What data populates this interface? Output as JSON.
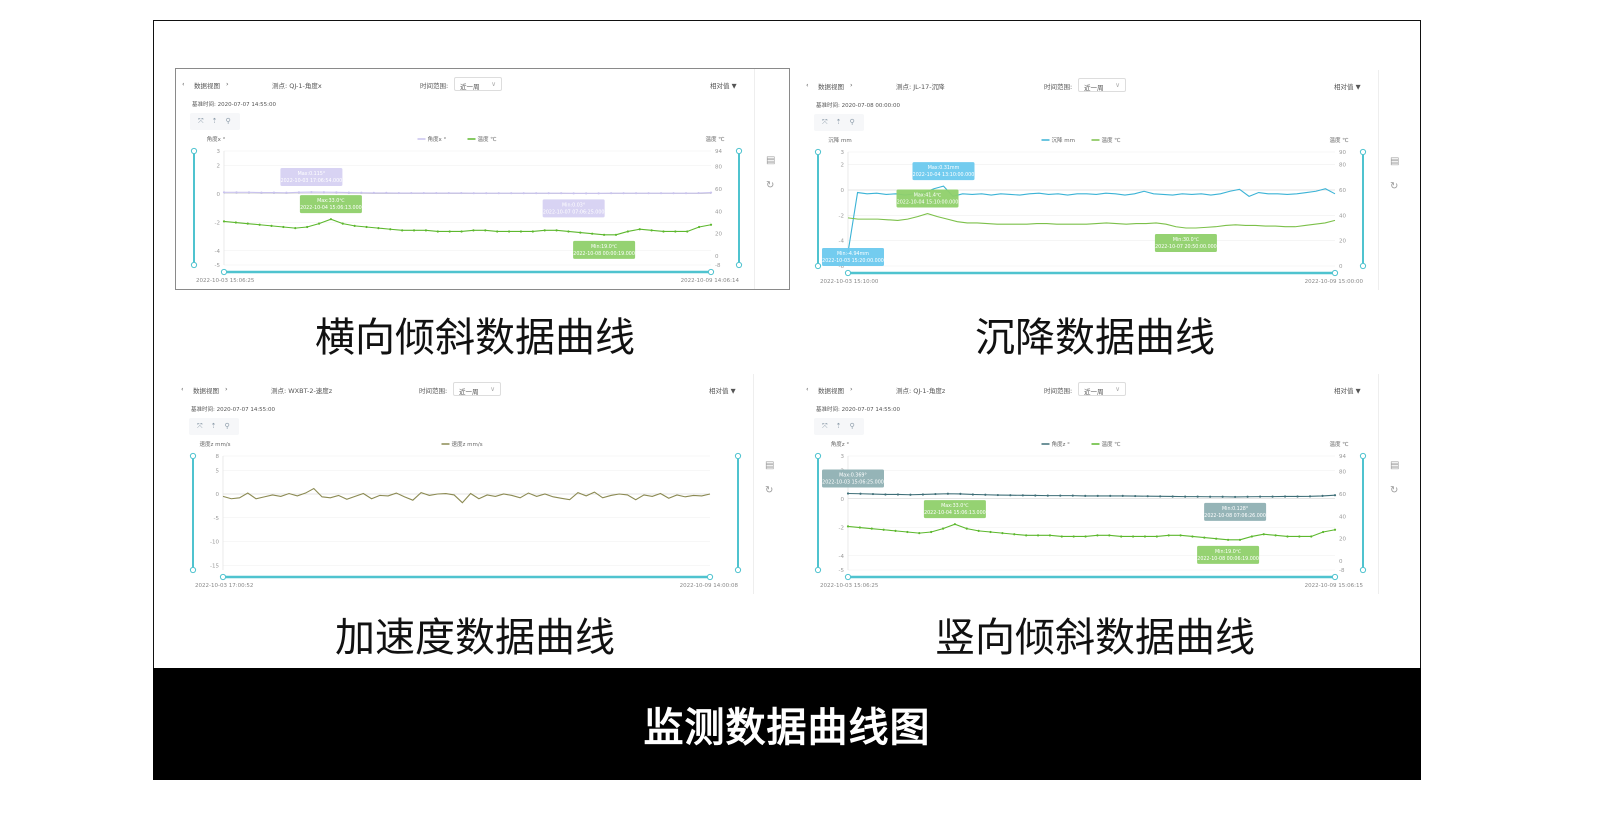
{
  "title": "监测数据曲线图",
  "colors": {
    "slider": "#4fc3cf",
    "grid": "#eeeeee",
    "axis": "#999999"
  },
  "panels": [
    {
      "caption": "横向倾斜数据曲线",
      "nav_label": "数据视图",
      "point": "测点: QJ-1-角度x",
      "range_label": "时间范围:",
      "range_value": "近一周",
      "mode": "相对值 ▼",
      "base_time": "基准时间: 2020-07-07 14:55:00",
      "left_axis_name": "角度x °",
      "right_axis_name": "温度 ℃",
      "left_ticks": [
        3,
        2,
        0,
        -2,
        -4,
        -5
      ],
      "left_range": [
        -5,
        3
      ],
      "right_ticks": [
        94,
        80,
        60,
        40,
        20,
        0,
        -8
      ],
      "right_range": [
        -8,
        94
      ],
      "x_start": "2022-10-03 15:06:25",
      "x_end": "2022-10-09 14:06:14",
      "series": [
        {
          "name": "角度x °",
          "axis": "left",
          "color": "#c9c3ee",
          "dots": true,
          "values": [
            0.1,
            0.1,
            0.1,
            0.08,
            0.08,
            0.07,
            0.1,
            0.12,
            0.11,
            0.1,
            0.08,
            0.07,
            0.06,
            0.06,
            0.05,
            0.05,
            0.05,
            0.05,
            0.05,
            0.05,
            0.04,
            0.04,
            0.04,
            0.04,
            0.04,
            0.04,
            0.04,
            0.04,
            0.03,
            0.03,
            0.03,
            0.04,
            0.04,
            0.04,
            0.04,
            0.04,
            0.04,
            0.04,
            0.05,
            0.08
          ],
          "tips": [
            {
              "kind": "max",
              "lines": [
                "Max:0.115°",
                "2022-10-03 17:06:54.000"
              ],
              "color": "#d6d1f2"
            },
            {
              "kind": "min",
              "lines": [
                "Min:0.03°",
                "2022-10-07 07:06:25.000"
              ],
              "color": "#d6d1f2"
            }
          ]
        },
        {
          "name": "温度 ℃",
          "axis": "right",
          "color": "#5db82e",
          "dots": true,
          "values": [
            31,
            30,
            29,
            28,
            27,
            26,
            25,
            26,
            29,
            33,
            29,
            27,
            26,
            25,
            24,
            23,
            23,
            23,
            22,
            22,
            22,
            23,
            23,
            22,
            22,
            22,
            22,
            23,
            23,
            22,
            21,
            20,
            19,
            19,
            22,
            24,
            23,
            22,
            22,
            22,
            26,
            28
          ],
          "tips": [
            {
              "kind": "max",
              "lines": [
                "Max:33.0℃",
                "2022-10-04 15:06:13.000"
              ],
              "color": "#8fd06a"
            },
            {
              "kind": "min",
              "lines": [
                "Min:19.0℃",
                "2022-10-08 00:00:19.000"
              ],
              "color": "#8fd06a"
            }
          ]
        }
      ]
    },
    {
      "caption": "沉降数据曲线",
      "nav_label": "数据视图",
      "point": "测点: JL-17-沉降",
      "range_label": "时间范围:",
      "range_value": "近一周",
      "mode": "相对值 ▼",
      "base_time": "基准时间: 2020-07-08 00:00:00",
      "left_axis_name": "沉降 mm",
      "right_axis_name": "温度 ℃",
      "left_ticks": [
        3,
        2,
        0,
        -2,
        -4,
        -6
      ],
      "left_range": [
        -6,
        3
      ],
      "right_ticks": [
        90,
        80,
        60,
        40,
        20,
        0
      ],
      "right_range": [
        0,
        90
      ],
      "x_start": "2022-10-03 15:10:00",
      "x_end": "2022-10-09 15:00:00",
      "series": [
        {
          "name": "沉降 mm",
          "axis": "left",
          "color": "#3bb3d6",
          "dots": false,
          "values": [
            -4.94,
            -0.2,
            -0.3,
            -0.25,
            -0.35,
            -0.3,
            -0.4,
            -0.3,
            -0.2,
            0.1,
            0.31,
            -0.5,
            -0.3,
            -0.35,
            -0.3,
            -0.4,
            -0.3,
            -0.35,
            -0.4,
            -0.3,
            -0.25,
            -0.35,
            -0.3,
            -0.4,
            -0.3,
            -0.3,
            -0.35,
            -0.25,
            -0.3,
            -0.4,
            -0.3,
            -0.1,
            -0.3,
            -0.35,
            -0.4,
            -0.3,
            -0.35,
            -0.3,
            -0.4,
            -0.3,
            -0.1,
            0.05,
            -0.5,
            -0.2,
            -0.3,
            -0.3,
            -0.35,
            -0.3,
            -0.2,
            -0.1,
            0.1,
            -0.3
          ],
          "tips": [
            {
              "kind": "max",
              "lines": [
                "Max:0.31mm",
                "2022-10-04 13:10:00.000"
              ],
              "color": "#6cc9ee"
            },
            {
              "kind": "min",
              "lines": [
                "Min:-4.94mm",
                "2022-10-03 15:20:00.000"
              ],
              "color": "#6cc9ee"
            }
          ]
        },
        {
          "name": "温度 ℃",
          "axis": "right",
          "color": "#7cc04a",
          "dots": false,
          "values": [
            38,
            37,
            37,
            37,
            36.5,
            36,
            37,
            39,
            41.4,
            39,
            37,
            35,
            34,
            34,
            33.5,
            33,
            33,
            33,
            33,
            33.5,
            33.5,
            33,
            33,
            33,
            33,
            33.5,
            34,
            33.5,
            33,
            33.5,
            33.5,
            34,
            33,
            31,
            30,
            30,
            30.5,
            31,
            32,
            32.5,
            32,
            32,
            31.5,
            31.5,
            31,
            31,
            32,
            33,
            34,
            36
          ],
          "tips": [
            {
              "kind": "max",
              "lines": [
                "Max:41.4℃",
                "2022-10-04 15:10:00.000"
              ],
              "color": "#8fd06a"
            },
            {
              "kind": "min",
              "lines": [
                "Min:30.0℃",
                "2022-10-07 20:50:00.000"
              ],
              "color": "#8fd06a"
            }
          ]
        }
      ]
    },
    {
      "caption": "加速度数据曲线",
      "nav_label": "数据视图",
      "point": "测点: WXBT-2-速度z",
      "range_label": "时间范围:",
      "range_value": "近一周",
      "mode": "相对值 ▼",
      "base_time": "基准时间: 2020-07-07 14:55:00",
      "left_axis_name": "速度z mm/s",
      "right_axis_name": "",
      "left_ticks": [
        8,
        5,
        0,
        -5,
        -10,
        -15
      ],
      "left_range": [
        -16,
        8
      ],
      "right_ticks": [],
      "right_range": null,
      "x_start": "2022-10-03 17:00:52",
      "x_end": "2022-10-09 14:00:08",
      "series": [
        {
          "name": "速度z mm/s",
          "axis": "left",
          "color": "#8b8a52",
          "dots": false,
          "values": [
            -0.5,
            -1,
            -0.8,
            0.2,
            -1,
            -0.6,
            -0.2,
            -0.5,
            0.1,
            -0.4,
            0.2,
            1.15,
            -0.6,
            -0.8,
            -0.3,
            -1.1,
            -0.5,
            0.1,
            -1,
            -0.3,
            -0.4,
            0.2,
            -0.6,
            -1.3,
            0.3,
            -0.3,
            0,
            0.1,
            -0.2,
            -1.83,
            0.1,
            -1,
            -0.2,
            -0.5,
            0,
            -0.3,
            -0.8,
            0.2,
            -0.5,
            0,
            -0.6,
            -0.9,
            -1.2,
            0.3,
            -0.4,
            0.4,
            -0.8,
            -0.3,
            0,
            -0.2,
            -1.2,
            -0.2,
            -0.5,
            0.1,
            -0.9,
            -0.2,
            -0.6,
            -0.3,
            -0.4,
            0
          ]
        },
        {
          "name": "",
          "axis": "none",
          "values": [],
          "tips": []
        }
      ],
      "tips_acc": []
    },
    {
      "caption": "竖向倾斜数据曲线",
      "nav_label": "数据视图",
      "point": "测点: QJ-1-角度z",
      "range_label": "时间范围:",
      "range_value": "近一周",
      "mode": "相对值 ▼",
      "base_time": "基准时间: 2020-07-07 14:55:00",
      "left_axis_name": "角度z °",
      "right_axis_name": "温度 ℃",
      "left_ticks": [
        3,
        2,
        0,
        -2,
        -4,
        -5
      ],
      "left_range": [
        -5,
        3
      ],
      "right_ticks": [
        94,
        80,
        60,
        40,
        20,
        0,
        -8
      ],
      "right_range": [
        -8,
        94
      ],
      "x_start": "2022-10-03 15:06:25",
      "x_end": "2022-10-09 15:06:15",
      "series": [
        {
          "name": "角度z °",
          "axis": "left",
          "color": "#3f6f78",
          "dots": true,
          "values": [
            0.369,
            0.35,
            0.33,
            0.3,
            0.3,
            0.28,
            0.3,
            0.33,
            0.35,
            0.34,
            0.3,
            0.28,
            0.26,
            0.25,
            0.24,
            0.23,
            0.22,
            0.22,
            0.22,
            0.2,
            0.2,
            0.2,
            0.2,
            0.19,
            0.18,
            0.17,
            0.16,
            0.15,
            0.15,
            0.14,
            0.14,
            0.128,
            0.14,
            0.15,
            0.15,
            0.16,
            0.16,
            0.17,
            0.2,
            0.25
          ],
          "tips": [
            {
              "kind": "max",
              "lines": [
                "Max:0.369°",
                "2022-10-03 15:06:25.000"
              ],
              "color": "#8fb0b3"
            },
            {
              "kind": "min",
              "lines": [
                "Min:0.128°",
                "2022-10-08 07:06:26.000"
              ],
              "color": "#8fb0b3"
            }
          ]
        },
        {
          "name": "温度 ℃",
          "axis": "right",
          "color": "#5db82e",
          "dots": true,
          "values": [
            31,
            30,
            29,
            28,
            27,
            26,
            25,
            26,
            29,
            33,
            29,
            27,
            26,
            25,
            24,
            23,
            23,
            23,
            22,
            22,
            22,
            23,
            23,
            22,
            22,
            22,
            22,
            23,
            23,
            22,
            21,
            20,
            19,
            19,
            22,
            24,
            23,
            22,
            22,
            22,
            26,
            28
          ],
          "tips": [
            {
              "kind": "max",
              "lines": [
                "Max:33.0℃",
                "2022-10-04 15:06:13.000"
              ],
              "color": "#8fd06a"
            },
            {
              "kind": "min",
              "lines": [
                "Min:19.0℃",
                "2022-10-08 00:06:19.000"
              ],
              "color": "#8fd06a"
            }
          ]
        }
      ]
    }
  ]
}
